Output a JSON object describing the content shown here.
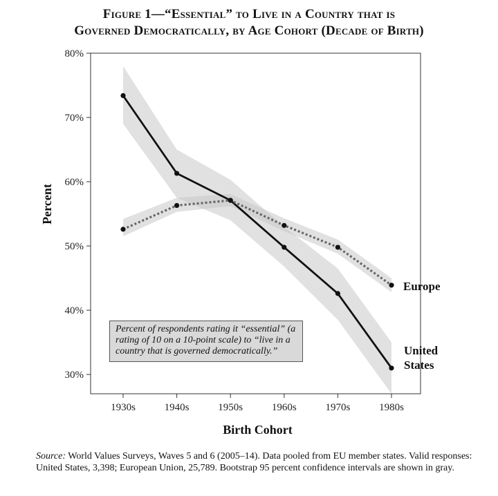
{
  "title_line1": "Figure 1—“Essential” to Live in a Country that is",
  "title_line2": "Governed Democratically, by Age Cohort (Decade of Birth)",
  "annotation": "Percent of respondents rating it “essential” (a rating of 10 on a 10-point scale) to “live in a country that is governed democratically.”",
  "source_label": "Source:",
  "source_text": "World Values Surveys, Waves 5 and 6 (2005–14). Data pooled from EU member states. Valid responses: United States, 3,398; European Union, 25,789. Bootstrap 95 percent confidence intervals are shown in gray.",
  "chart_data": {
    "type": "line",
    "categories": [
      "1930s",
      "1940s",
      "1950s",
      "1960s",
      "1970s",
      "1980s"
    ],
    "xlabel": "Birth Cohort",
    "ylabel": "Percent",
    "ylim": [
      27,
      80
    ],
    "yticks": [
      "30%",
      "40%",
      "50%",
      "60%",
      "70%",
      "80%"
    ],
    "grid": false,
    "series": [
      {
        "name": "United States",
        "label_lines": [
          "United",
          "States"
        ],
        "style": "solid",
        "values": [
          73.4,
          61.3,
          57.1,
          49.8,
          42.6,
          31.0
        ],
        "ci_lower": [
          69.0,
          57.5,
          54.0,
          46.8,
          38.5,
          27.0
        ],
        "ci_upper": [
          78.0,
          65.0,
          60.3,
          53.0,
          46.5,
          35.0
        ]
      },
      {
        "name": "Europe",
        "label_lines": [
          "Europe"
        ],
        "style": "dotted",
        "values": [
          52.6,
          56.3,
          57.1,
          53.2,
          49.8,
          43.9
        ],
        "ci_lower": [
          51.5,
          55.3,
          56.2,
          52.3,
          48.8,
          42.8
        ],
        "ci_upper": [
          54.2,
          57.5,
          58.1,
          54.3,
          51.0,
          45.0
        ]
      }
    ],
    "colors": {
      "line": "#111111",
      "dotted": "#666666",
      "band": "#c8c8c8",
      "annotation_bg": "#d9d9d9"
    }
  }
}
